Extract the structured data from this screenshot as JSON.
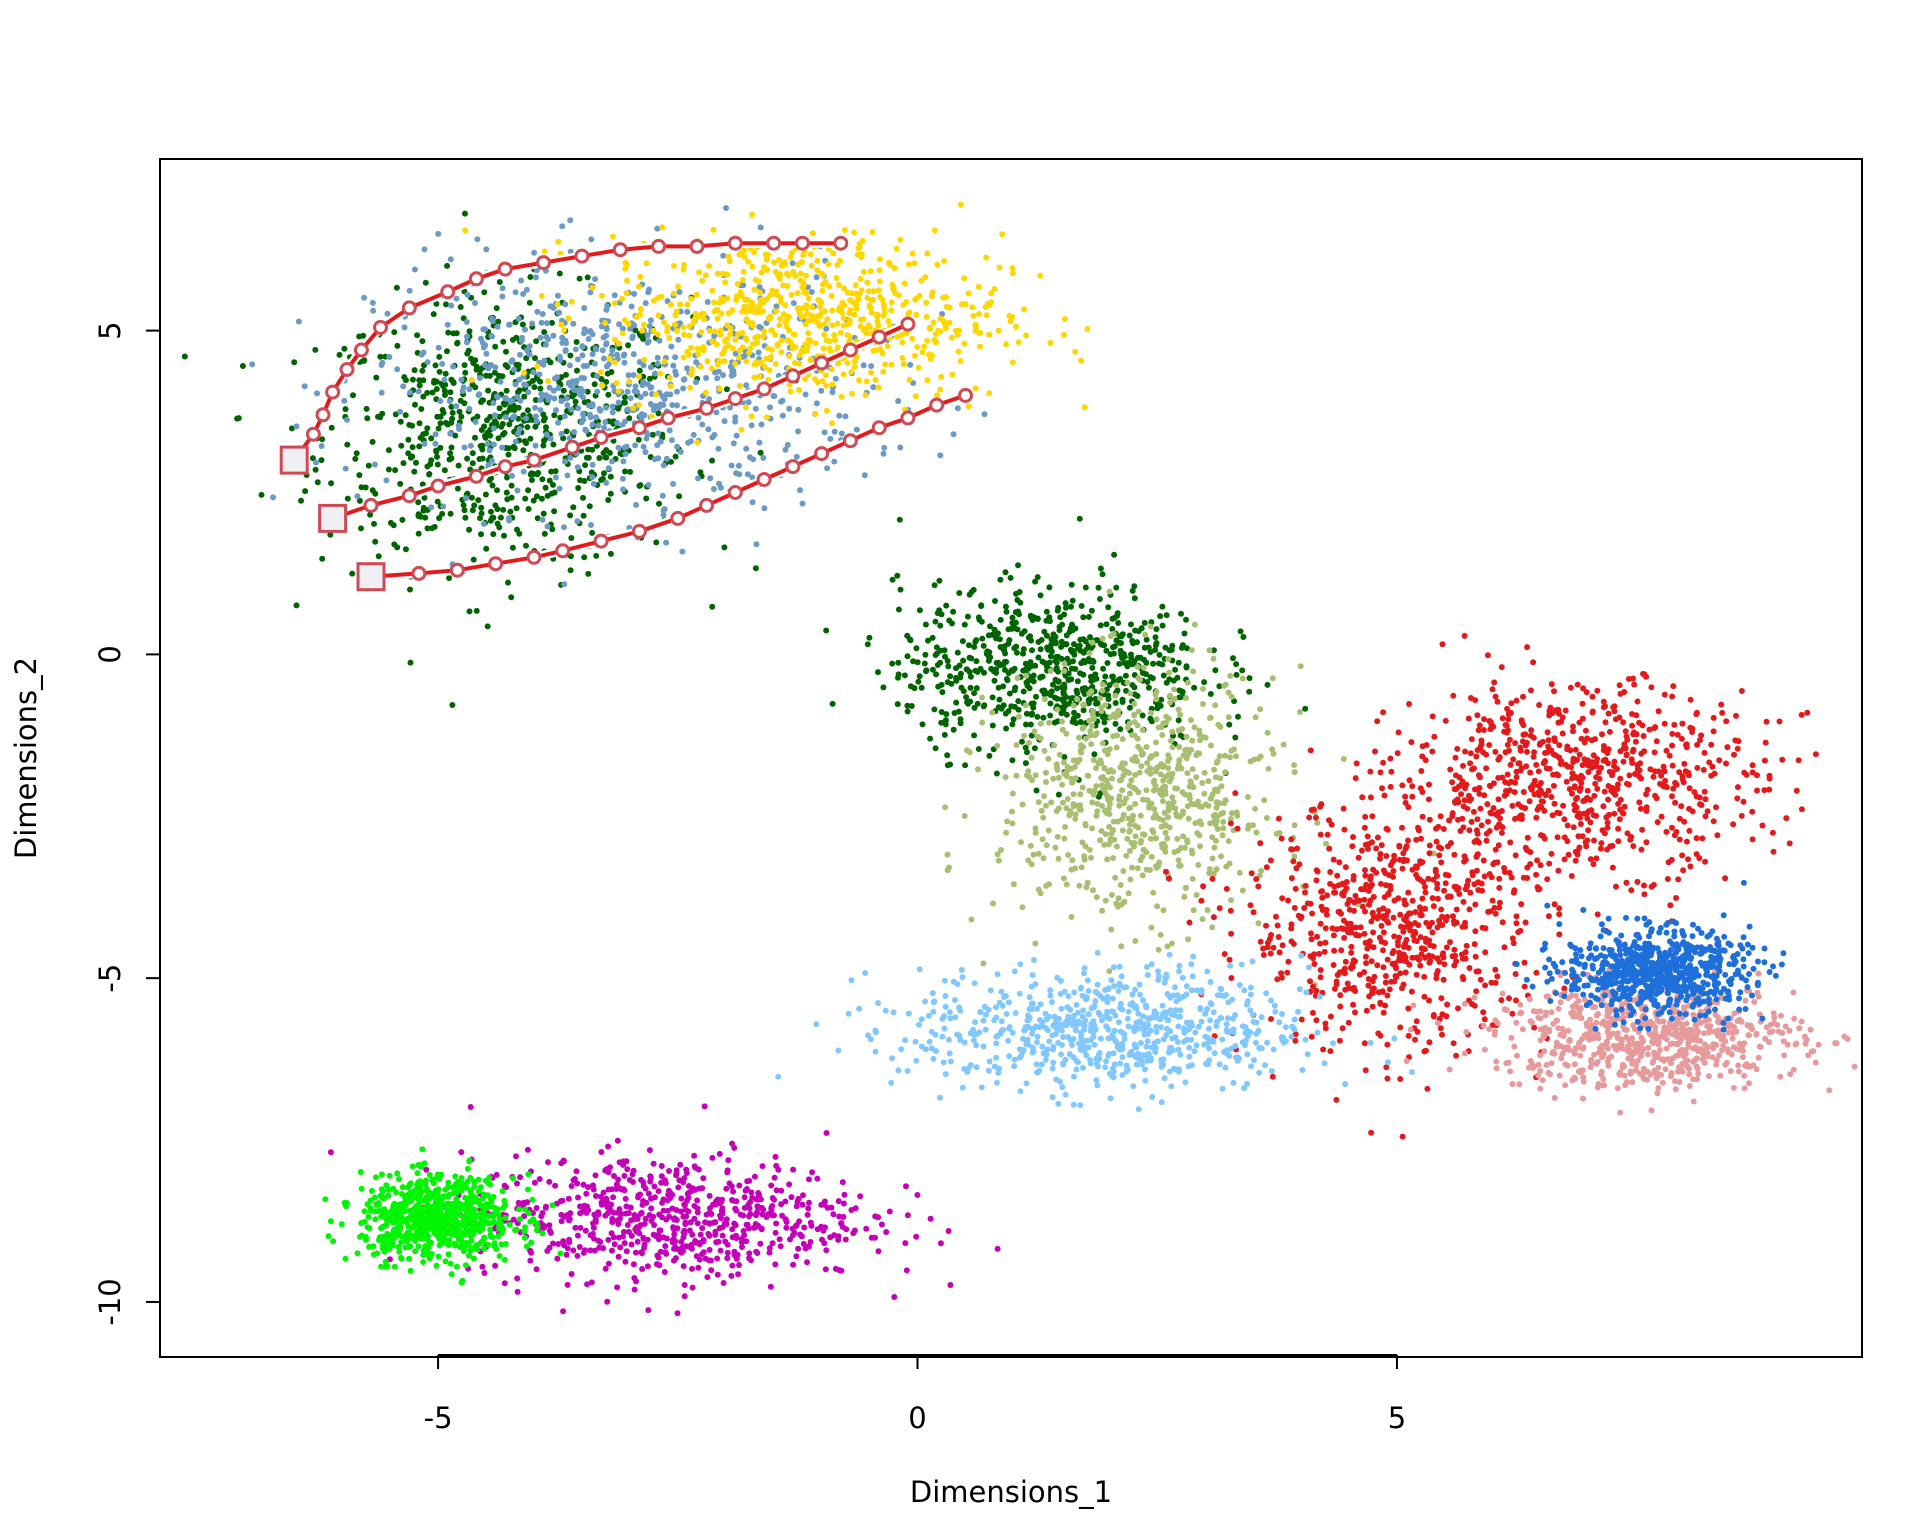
{
  "chart_data": {
    "type": "scatter",
    "title": "",
    "xlabel": "Dimensions_1",
    "ylabel": "Dimensions_2",
    "xlim": [
      -7.9,
      9.85
    ],
    "ylim": [
      -10.85,
      7.65
    ],
    "xticks": [
      -5,
      0,
      5
    ],
    "yticks": [
      5,
      0,
      -5,
      -10
    ],
    "xtick_labels": [
      "-5",
      "0",
      "5"
    ],
    "ytick_labels": [
      "5",
      "0",
      "-5",
      "-10"
    ],
    "grid": false,
    "legend": "none",
    "clusters": [
      {
        "color": "#006400",
        "cx": -4.3,
        "cy": 3.4,
        "sx": 1.2,
        "sy": 1.3
      },
      {
        "color": "#6B9AC4",
        "cx": -3.1,
        "cy": 4.1,
        "sx": 1.6,
        "sy": 1.2
      },
      {
        "color": "#FFD700",
        "cx": -1.2,
        "cy": 5.2,
        "sx": 1.3,
        "sy": 0.8
      },
      {
        "color": "#006400",
        "cx": 1.4,
        "cy": -0.2,
        "sx": 1.0,
        "sy": 0.8
      },
      {
        "color": "#A8BF72",
        "cx": 2.3,
        "cy": -2.2,
        "sx": 0.9,
        "sy": 1.2
      },
      {
        "color": "#E31A1C",
        "cx": 6.9,
        "cy": -1.9,
        "sx": 1.2,
        "sy": 0.9
      },
      {
        "color": "#E31A1C",
        "cx": 5.0,
        "cy": -4.2,
        "sx": 1.0,
        "sy": 1.2
      },
      {
        "color": "#E79A9C",
        "cx": 7.6,
        "cy": -5.9,
        "sx": 1.0,
        "sy": 0.5
      },
      {
        "color": "#1E6FD9",
        "cx": 7.7,
        "cy": -4.9,
        "sx": 0.6,
        "sy": 0.4
      },
      {
        "color": "#82C8FF",
        "cx": 2.0,
        "cy": -5.8,
        "sx": 1.3,
        "sy": 0.6
      },
      {
        "color": "#C400B8",
        "cx": -2.6,
        "cy": -8.7,
        "sx": 1.3,
        "sy": 0.6
      },
      {
        "color": "#00F500",
        "cx": -5.0,
        "cy": -8.7,
        "sx": 0.5,
        "sy": 0.4
      }
    ],
    "trajectories": [
      {
        "color": "#E31A1C",
        "points": [
          [
            -6.5,
            3.0
          ],
          [
            -6.3,
            3.4
          ],
          [
            -6.2,
            3.7
          ],
          [
            -6.1,
            4.05
          ],
          [
            -5.95,
            4.4
          ],
          [
            -5.8,
            4.7
          ],
          [
            -5.6,
            5.05
          ],
          [
            -5.3,
            5.35
          ],
          [
            -4.9,
            5.6
          ],
          [
            -4.6,
            5.8
          ],
          [
            -4.3,
            5.95
          ],
          [
            -3.9,
            6.05
          ],
          [
            -3.5,
            6.15
          ],
          [
            -3.1,
            6.25
          ],
          [
            -2.7,
            6.3
          ],
          [
            -2.3,
            6.3
          ],
          [
            -1.9,
            6.35
          ],
          [
            -1.5,
            6.35
          ],
          [
            -1.2,
            6.35
          ],
          [
            -0.8,
            6.35
          ]
        ]
      },
      {
        "color": "#E31A1C",
        "points": [
          [
            -6.1,
            2.1
          ],
          [
            -5.7,
            2.3
          ],
          [
            -5.3,
            2.45
          ],
          [
            -5.0,
            2.6
          ],
          [
            -4.6,
            2.75
          ],
          [
            -4.3,
            2.9
          ],
          [
            -4.0,
            3.0
          ],
          [
            -3.6,
            3.2
          ],
          [
            -3.3,
            3.35
          ],
          [
            -2.9,
            3.5
          ],
          [
            -2.6,
            3.65
          ],
          [
            -2.2,
            3.8
          ],
          [
            -1.9,
            3.95
          ],
          [
            -1.6,
            4.1
          ],
          [
            -1.3,
            4.3
          ],
          [
            -1.0,
            4.5
          ],
          [
            -0.7,
            4.7
          ],
          [
            -0.4,
            4.9
          ],
          [
            -0.1,
            5.1
          ]
        ]
      },
      {
        "color": "#E31A1C",
        "points": [
          [
            -5.7,
            1.2
          ],
          [
            -5.2,
            1.25
          ],
          [
            -4.8,
            1.3
          ],
          [
            -4.4,
            1.4
          ],
          [
            -4.0,
            1.5
          ],
          [
            -3.7,
            1.6
          ],
          [
            -3.3,
            1.75
          ],
          [
            -2.9,
            1.9
          ],
          [
            -2.5,
            2.1
          ],
          [
            -2.2,
            2.3
          ],
          [
            -1.9,
            2.5
          ],
          [
            -1.6,
            2.7
          ],
          [
            -1.3,
            2.9
          ],
          [
            -1.0,
            3.1
          ],
          [
            -0.7,
            3.3
          ],
          [
            -0.4,
            3.5
          ],
          [
            -0.1,
            3.65
          ],
          [
            0.2,
            3.85
          ],
          [
            0.5,
            4.0
          ]
        ]
      }
    ]
  }
}
